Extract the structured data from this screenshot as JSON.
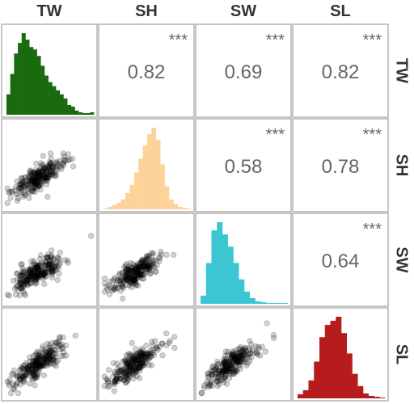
{
  "chart_data": {
    "type": "pairs-matrix",
    "variables": [
      "TW",
      "SH",
      "SW",
      "SL"
    ],
    "colors": {
      "TW": "#1a6b0f",
      "SH": "#fdd39a",
      "SW": "#3cc6d3",
      "SL": "#b71c1c",
      "points": "#000000"
    },
    "correlations": [
      {
        "row": "TW",
        "col": "SH",
        "r": "0.82",
        "sig": "***"
      },
      {
        "row": "TW",
        "col": "SW",
        "r": "0.69",
        "sig": "***"
      },
      {
        "row": "TW",
        "col": "SL",
        "r": "0.82",
        "sig": "***"
      },
      {
        "row": "SH",
        "col": "SW",
        "r": "0.58",
        "sig": "***"
      },
      {
        "row": "SH",
        "col": "SL",
        "r": "0.78",
        "sig": "***"
      },
      {
        "row": "SW",
        "col": "SL",
        "r": "0.64",
        "sig": "***"
      }
    ],
    "histograms": {
      "TW": [
        0.25,
        0.5,
        0.75,
        0.88,
        1.0,
        0.92,
        0.83,
        0.8,
        0.72,
        0.6,
        0.48,
        0.4,
        0.35,
        0.3,
        0.25,
        0.2,
        0.12,
        0.1,
        0.05,
        0.03,
        0.02,
        0.02,
        0.03
      ],
      "SH": [
        0.01,
        0.03,
        0.05,
        0.08,
        0.12,
        0.2,
        0.3,
        0.45,
        0.62,
        0.78,
        0.92,
        1.0,
        0.85,
        0.55,
        0.28,
        0.12,
        0.06,
        0.03,
        0.02,
        0.01
      ],
      "SW": [
        0.1,
        0.5,
        0.9,
        1.0,
        0.85,
        0.7,
        0.5,
        0.3,
        0.15,
        0.07,
        0.03,
        0.02,
        0.01,
        0.01,
        0.01,
        0.01
      ],
      "SL": [
        0.05,
        0.1,
        0.22,
        0.45,
        0.75,
        0.9,
        0.95,
        1.0,
        0.8,
        0.55,
        0.3,
        0.15,
        0.06,
        0.03,
        0.02,
        0.01
      ]
    },
    "scatter_slopes": {
      "TW": 0.75,
      "SH": 0.62,
      "SW": 0.58,
      "SL": 0.7
    },
    "grid": true
  }
}
